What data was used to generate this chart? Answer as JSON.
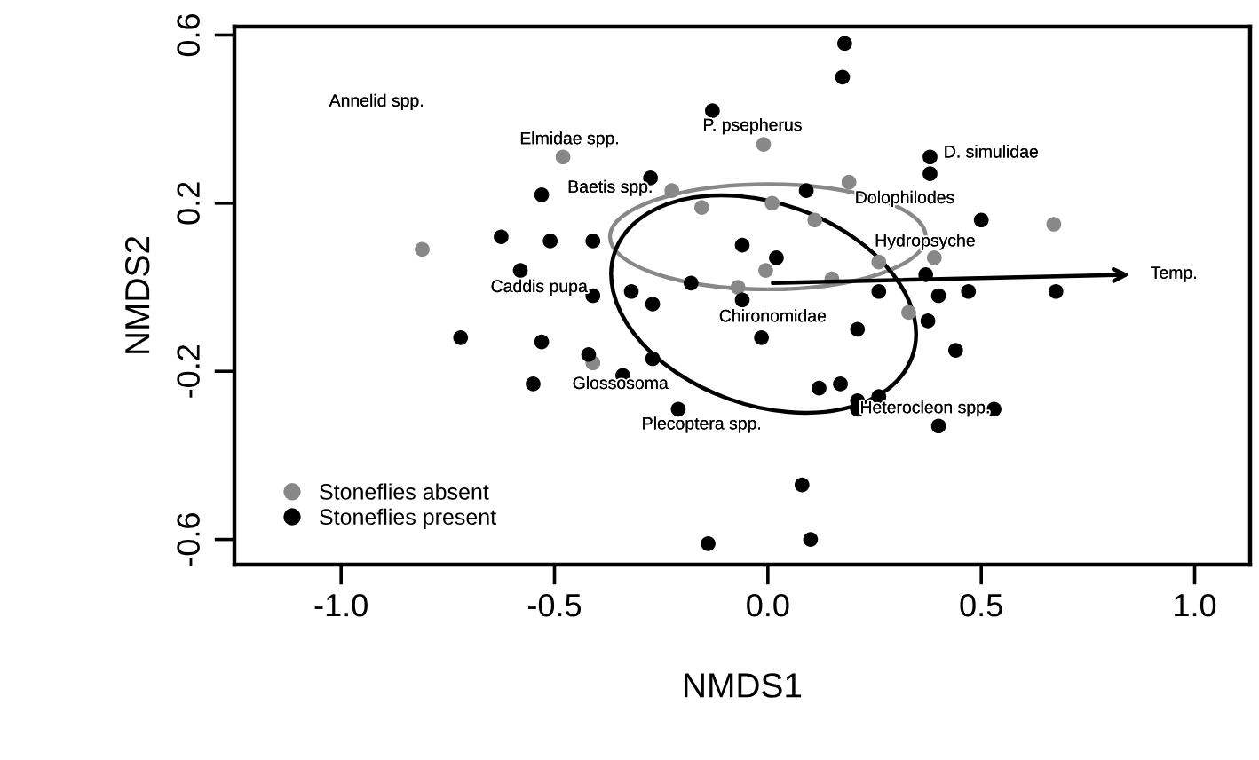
{
  "chart_data": {
    "type": "scatter",
    "xlabel": "NMDS1",
    "ylabel": "NMDS2",
    "xlim": [
      -1.25,
      1.13
    ],
    "ylim": [
      -0.66,
      0.62
    ],
    "xticks": [
      {
        "value": -1.0,
        "label": "-1.0"
      },
      {
        "value": -0.5,
        "label": "-0.5"
      },
      {
        "value": 0.0,
        "label": "0.0"
      },
      {
        "value": 0.5,
        "label": "0.5"
      },
      {
        "value": 1.0,
        "label": "1.0"
      }
    ],
    "yticks": [
      {
        "value": -0.6,
        "label": "-0.6"
      },
      {
        "value": -0.2,
        "label": "-0.2"
      },
      {
        "value": 0.2,
        "label": "0.2"
      },
      {
        "value": 0.6,
        "label": "0.6"
      }
    ],
    "grid": false,
    "legend": "bottom left",
    "marker": "circle",
    "series": [
      {
        "name": "Stoneflies absent",
        "color": "#888888",
        "x": [
          -0.81,
          -0.48,
          -0.225,
          -0.155,
          -0.01,
          0.19,
          0.01,
          0.11,
          0.67,
          -0.005,
          0.26,
          0.39,
          0.15,
          -0.07,
          0.33,
          -0.41
        ],
        "values": [
          0.09,
          0.31,
          0.23,
          0.19,
          0.34,
          0.25,
          0.2,
          0.16,
          0.15,
          0.04,
          0.06,
          0.07,
          0.02,
          0.0,
          -0.06,
          -0.18
        ]
      },
      {
        "name": "Stoneflies present",
        "color": "#000000",
        "x": [
          -0.13,
          -0.275,
          -0.53,
          -0.625,
          -0.51,
          -0.41,
          -0.58,
          -0.41,
          -0.32,
          -0.27,
          -0.18,
          0.18,
          0.175,
          0.38,
          0.38,
          0.09,
          0.5,
          -0.06,
          0.02,
          0.37,
          0.26,
          0.4,
          0.47,
          0.675,
          -0.06,
          0.375,
          -0.015,
          0.21,
          0.44,
          0.12,
          0.17,
          0.21,
          0.21,
          0.26,
          0.53,
          0.4,
          0.08,
          0.1,
          -0.14,
          -0.72,
          -0.53,
          -0.42,
          -0.27,
          -0.34,
          -0.55,
          -0.21
        ],
        "values": [
          0.42,
          0.26,
          0.22,
          0.12,
          0.11,
          0.11,
          0.04,
          -0.02,
          -0.01,
          -0.04,
          0.01,
          0.58,
          0.5,
          0.31,
          0.27,
          0.23,
          0.16,
          0.1,
          0.07,
          0.03,
          -0.01,
          -0.02,
          -0.01,
          -0.01,
          -0.03,
          -0.08,
          -0.12,
          -0.1,
          -0.15,
          -0.24,
          -0.23,
          -0.27,
          -0.29,
          -0.26,
          -0.29,
          -0.33,
          -0.47,
          -0.6,
          -0.61,
          -0.12,
          -0.13,
          -0.16,
          -0.17,
          -0.21,
          -0.23,
          -0.29
        ]
      }
    ],
    "annotations": [
      "Annelid spp.",
      "Elmidae spp.",
      "P. psepherus",
      "Baetis spp.",
      "Caddis pupa",
      "D. simulidae",
      "Dolophilodes",
      "Hydropsyche",
      "Chironomidae",
      "Glossosoma",
      "Plecoptera spp.",
      "Heterocleon spp.",
      "Temp."
    ]
  }
}
